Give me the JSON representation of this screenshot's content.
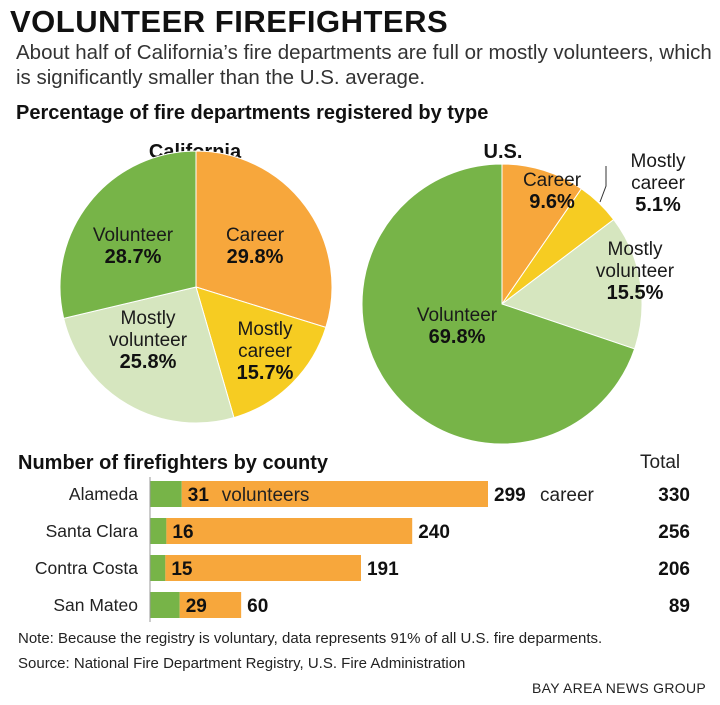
{
  "title": "VOLUNTEER FIREFIGHTERS",
  "subtitle": "About half of California’s fire departments are full or mostly volunteers, which is significantly smaller than the U.S. average.",
  "section_pies": "Percentage of fire departments registered by type",
  "section_bars": "Number of firefighters by county",
  "total_header": "Total",
  "note": "Note: Because the registry is voluntary, data represents 91% of all U.S. fire deparments.",
  "source": "Source: National Fire Department Registry, U.S. Fire Administration",
  "credit": "BAY AREA NEWS GROUP",
  "colors": {
    "volunteer": "#77b448",
    "career": "#f7a73c",
    "mostly_career": "#f6cc22",
    "mostly_volunteer": "#d6e6bf"
  },
  "chart_data": [
    {
      "type": "pie",
      "title": "California",
      "slices": [
        {
          "name": "Career",
          "value": 29.8,
          "label": "29.8%",
          "color": "#f7a73c"
        },
        {
          "name": "Mostly career",
          "value": 15.7,
          "label": "15.7%",
          "color": "#f6cc22"
        },
        {
          "name": "Mostly volunteer",
          "value": 25.8,
          "label": "25.8%",
          "color": "#d6e6bf"
        },
        {
          "name": "Volunteer",
          "value": 28.7,
          "label": "28.7%",
          "color": "#77b448"
        }
      ]
    },
    {
      "type": "pie",
      "title": "U.S.",
      "slices": [
        {
          "name": "Career",
          "value": 9.6,
          "label": "9.6%",
          "color": "#f7a73c"
        },
        {
          "name": "Mostly career",
          "value": 5.1,
          "label": "5.1%",
          "color": "#f6cc22"
        },
        {
          "name": "Mostly volunteer",
          "value": 15.5,
          "label": "15.5%",
          "color": "#d6e6bf"
        },
        {
          "name": "Volunteer",
          "value": 69.8,
          "label": "69.8%",
          "color": "#77b448"
        }
      ]
    },
    {
      "type": "bar",
      "stacked": true,
      "orientation": "horizontal",
      "categories": [
        "Alameda",
        "Santa Clara",
        "Contra Costa",
        "San Mateo"
      ],
      "series": [
        {
          "name": "volunteers",
          "values": [
            31,
            16,
            15,
            29
          ],
          "color": "#77b448"
        },
        {
          "name": "career",
          "values": [
            299,
            240,
            191,
            60
          ],
          "color": "#f7a73c"
        }
      ],
      "totals": [
        330,
        256,
        206,
        89
      ],
      "xlim": [
        0,
        330
      ]
    }
  ]
}
